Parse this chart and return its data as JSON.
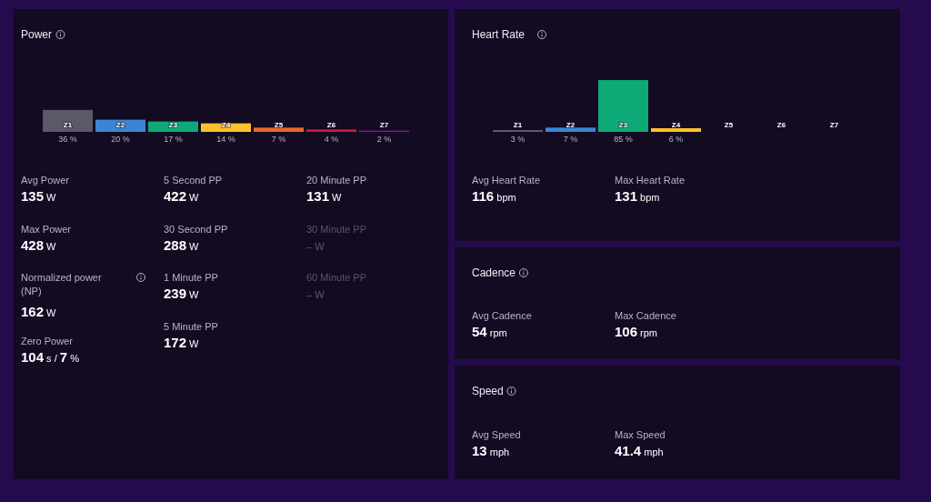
{
  "chart_data": [
    {
      "type": "bar",
      "title": "Power",
      "categories": [
        "Z1",
        "Z2",
        "Z3",
        "Z4",
        "Z5",
        "Z6",
        "Z7"
      ],
      "values": [
        36,
        20,
        17,
        14,
        7,
        4,
        2
      ],
      "colors": [
        "#5b5868",
        "#3a86d4",
        "#0daa78",
        "#fbc12a",
        "#e8672a",
        "#d2193a",
        "#8a1a8a"
      ],
      "value_labels": [
        "36 %",
        "20 %",
        "17 %",
        "14 %",
        "7 %",
        "4 %",
        "2 %"
      ],
      "annotations": [
        "Avg Power",
        "135 W",
        "Max Power",
        "428 W",
        "Normalized power (NP)",
        "162 W",
        "Zero Power",
        "104 s / 7 %",
        "5 Second PP",
        "422 W",
        "30 Second PP",
        "288 W",
        "1 Minute PP",
        "239 W",
        "5 Minute PP",
        "172 W",
        "20 Minute PP",
        "131 W",
        "30 Minute PP",
        "– W",
        "60 Minute PP",
        "– W"
      ]
    },
    {
      "type": "bar",
      "title": "Heart Rate",
      "categories": [
        "Z1",
        "Z2",
        "Z3",
        "Z4",
        "Z5",
        "Z6",
        "Z7"
      ],
      "values": [
        3,
        7,
        85,
        6,
        null,
        null,
        null
      ],
      "colors": [
        "#5b5868",
        "#3a86d4",
        "#0daa78",
        "#fbc12a",
        null,
        null,
        null
      ],
      "value_labels": [
        "3 %",
        "7 %",
        "85 %",
        "6 %",
        null,
        null,
        null
      ],
      "annotations": [
        "Avg Heart Rate",
        "116 bpm",
        "Max Heart Rate",
        "131 bpm"
      ]
    },
    {
      "type": "other",
      "title": "Cadence",
      "annotations": [
        "Avg Cadence",
        "54 rpm",
        "Max Cadence",
        "106 rpm"
      ]
    },
    {
      "type": "other",
      "title": "Speed",
      "annotations": [
        "Avg Speed",
        "13 mph",
        "Max Speed",
        "41.4 mph"
      ]
    }
  ]
}
